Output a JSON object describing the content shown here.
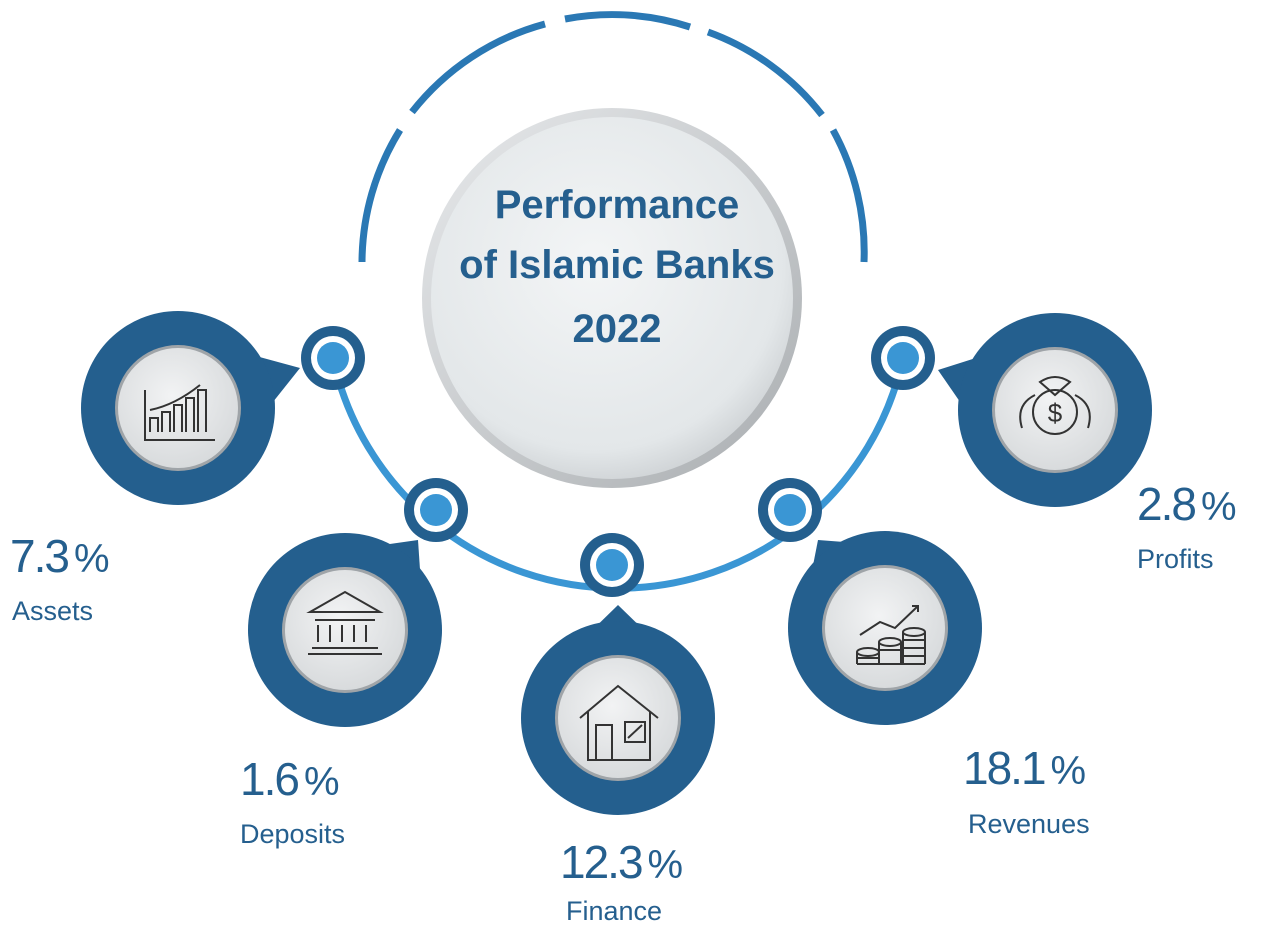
{
  "title": {
    "lines": [
      "Performance",
      "of Islamic Banks",
      "2022"
    ]
  },
  "unit": "%",
  "items": [
    {
      "value": 7.3,
      "label": "Assets"
    },
    {
      "value": 1.6,
      "label": "Deposits"
    },
    {
      "value": 12.3,
      "label": "Finance"
    },
    {
      "value": 18.1,
      "label": "Revenues"
    },
    {
      "value": 2.8,
      "label": "Profits"
    }
  ]
}
